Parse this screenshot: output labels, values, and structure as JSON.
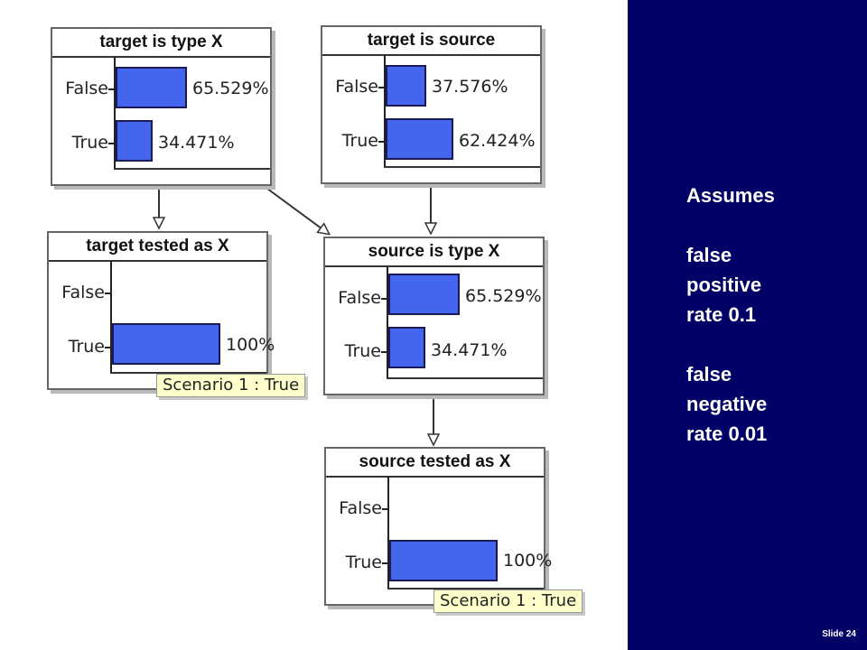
{
  "nodes": [
    {
      "title": "target is type X",
      "rows": [
        {
          "label": "False",
          "value": 65.529,
          "pct": "65.529%"
        },
        {
          "label": "True",
          "value": 34.471,
          "pct": "34.471%"
        }
      ]
    },
    {
      "title": "target is source",
      "rows": [
        {
          "label": "False",
          "value": 37.576,
          "pct": "37.576%"
        },
        {
          "label": "True",
          "value": 62.424,
          "pct": "62.424%"
        }
      ]
    },
    {
      "title": "target tested as X",
      "rows": [
        {
          "label": "False",
          "value": 0,
          "pct": ""
        },
        {
          "label": "True",
          "value": 100,
          "pct": "100%"
        }
      ],
      "scenario": "Scenario 1 : True"
    },
    {
      "title": "source is type X",
      "rows": [
        {
          "label": "False",
          "value": 65.529,
          "pct": "65.529%"
        },
        {
          "label": "True",
          "value": 34.471,
          "pct": "34.471%"
        }
      ]
    },
    {
      "title": "source tested as X",
      "rows": [
        {
          "label": "False",
          "value": 0,
          "pct": ""
        },
        {
          "label": "True",
          "value": 100,
          "pct": "100%"
        }
      ],
      "scenario": "Scenario 1 : True"
    }
  ],
  "notes": [
    "Assumes",
    "",
    "false",
    "positive",
    "rate  0.1",
    "",
    "false",
    "negative",
    "rate 0.01"
  ],
  "slide_number": "Slide 24",
  "colors": {
    "panel": "#000066",
    "bar": "#4466ee",
    "scenario": "#ffffcc"
  }
}
